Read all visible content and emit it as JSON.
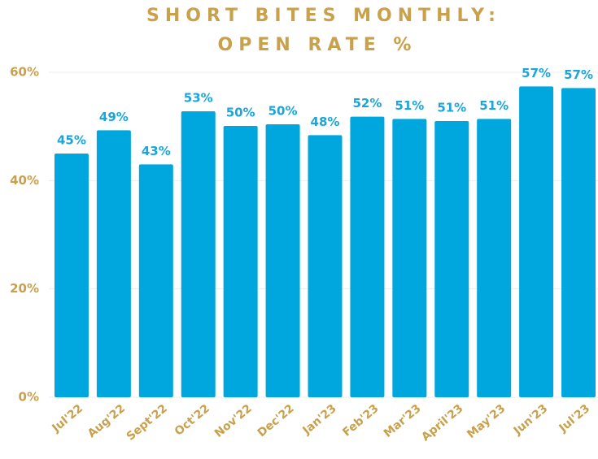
{
  "chart_data": {
    "type": "bar",
    "title": [
      "SHORT BITES MONTHLY:",
      "OPEN RATE %"
    ],
    "categories": [
      "Jul'22",
      "Aug'22",
      "Sept'22",
      "Oct'22",
      "Nov'22",
      "Dec'22",
      "Jan'23",
      "Feb'23",
      "Mar'23",
      "April'23",
      "May'23",
      "Jun'23",
      "Jul'23"
    ],
    "values": [
      45.0,
      49.3,
      43.0,
      52.8,
      50.1,
      50.4,
      48.4,
      51.8,
      51.4,
      51.0,
      51.4,
      57.4,
      57.1
    ],
    "value_labels": [
      "45%",
      "49%",
      "43%",
      "53%",
      "50%",
      "50%",
      "48%",
      "52%",
      "51%",
      "51%",
      "51%",
      "57%",
      "57%"
    ],
    "color": "#00a6de",
    "label_color": "#1aa6dc",
    "text_color": "#c9a04b",
    "ylim": [
      0,
      60
    ],
    "yticks": [
      {
        "value": 0,
        "label": "0%"
      },
      {
        "value": 20,
        "label": "20%"
      },
      {
        "value": 40,
        "label": "40%"
      },
      {
        "value": 60,
        "label": "60%"
      }
    ],
    "grid": true
  }
}
